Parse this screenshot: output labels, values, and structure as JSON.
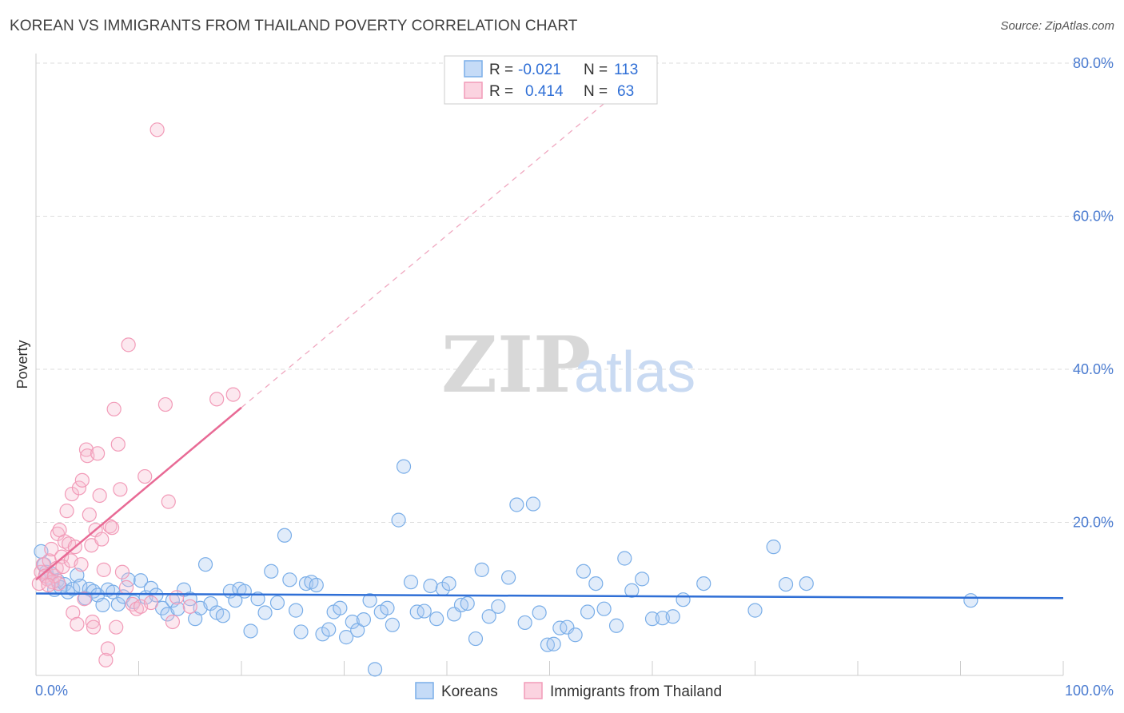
{
  "title": "KOREAN VS IMMIGRANTS FROM THAILAND POVERTY CORRELATION CHART",
  "source": "Source: ZipAtlas.com",
  "watermark": {
    "zip": "ZIP",
    "atlas": "atlas"
  },
  "colors": {
    "blue": "#7aaee8",
    "blue_line": "#2f6fd6",
    "pink": "#f29bb8",
    "pink_line": "#e86a95",
    "grid": "#dddddd"
  },
  "legend": {
    "r_label": "R = ",
    "n_label": "N = ",
    "rows": [
      {
        "r": "-0.021",
        "n": "113",
        "color": "blue"
      },
      {
        "r": "0.414",
        "n": "63",
        "color": "pink"
      }
    ]
  },
  "bottom_legend": [
    "Koreans",
    "Immigrants from Thailand"
  ],
  "chart_data": {
    "type": "scatter",
    "title": "KOREAN VS IMMIGRANTS FROM THAILAND POVERTY CORRELATION CHART",
    "xlabel": "",
    "ylabel": "Poverty",
    "xlim": [
      0,
      100
    ],
    "ylim": [
      0,
      80
    ],
    "x_tick_labels": [
      "0.0%",
      "100.0%"
    ],
    "y_tick_labels": [
      "20.0%",
      "40.0%",
      "60.0%",
      "80.0%"
    ],
    "y_ticks": [
      20,
      40,
      60,
      80
    ],
    "grid": true,
    "legend_position": "top-center",
    "series": [
      {
        "name": "Koreans",
        "color": "#7aaee8",
        "trend": {
          "x": [
            0,
            100
          ],
          "y": [
            10.7,
            10.1
          ]
        },
        "points": [
          [
            0.5,
            16.2
          ],
          [
            0.8,
            14.5
          ],
          [
            1.0,
            13.5
          ],
          [
            1.2,
            12.8
          ],
          [
            1.5,
            13.3
          ],
          [
            1.8,
            11.2
          ],
          [
            2.1,
            12.4
          ],
          [
            2.4,
            11.5
          ],
          [
            2.8,
            11.9
          ],
          [
            3.1,
            10.9
          ],
          [
            3.6,
            11.3
          ],
          [
            4.0,
            13.1
          ],
          [
            4.3,
            11.7
          ],
          [
            4.8,
            10.1
          ],
          [
            5.2,
            11.3
          ],
          [
            5.6,
            11.0
          ],
          [
            6.0,
            10.5
          ],
          [
            6.5,
            9.2
          ],
          [
            7.0,
            11.2
          ],
          [
            7.5,
            10.9
          ],
          [
            8.0,
            9.3
          ],
          [
            8.5,
            10.3
          ],
          [
            9.0,
            12.5
          ],
          [
            9.5,
            9.6
          ],
          [
            10.2,
            12.4
          ],
          [
            10.7,
            10.2
          ],
          [
            11.2,
            11.4
          ],
          [
            11.7,
            10.5
          ],
          [
            12.3,
            8.8
          ],
          [
            12.8,
            8.0
          ],
          [
            13.3,
            9.8
          ],
          [
            13.8,
            8.7
          ],
          [
            14.4,
            11.2
          ],
          [
            15.0,
            10.0
          ],
          [
            15.5,
            7.4
          ],
          [
            16.0,
            8.8
          ],
          [
            16.5,
            14.5
          ],
          [
            17.0,
            9.4
          ],
          [
            17.6,
            8.2
          ],
          [
            18.2,
            7.8
          ],
          [
            18.9,
            11.0
          ],
          [
            19.4,
            9.8
          ],
          [
            19.8,
            11.3
          ],
          [
            20.3,
            11.0
          ],
          [
            20.9,
            5.8
          ],
          [
            21.6,
            10.0
          ],
          [
            22.3,
            8.2
          ],
          [
            22.9,
            13.6
          ],
          [
            23.5,
            9.5
          ],
          [
            24.2,
            18.3
          ],
          [
            24.7,
            12.5
          ],
          [
            25.3,
            8.5
          ],
          [
            25.8,
            5.7
          ],
          [
            26.3,
            12.0
          ],
          [
            26.8,
            12.2
          ],
          [
            27.3,
            11.8
          ],
          [
            27.9,
            5.4
          ],
          [
            28.5,
            6.0
          ],
          [
            29.0,
            8.3
          ],
          [
            29.6,
            8.8
          ],
          [
            30.2,
            5.0
          ],
          [
            30.8,
            7.0
          ],
          [
            31.3,
            5.9
          ],
          [
            31.9,
            7.3
          ],
          [
            32.5,
            9.8
          ],
          [
            33.0,
            0.8
          ],
          [
            33.6,
            8.3
          ],
          [
            34.2,
            8.8
          ],
          [
            34.7,
            6.6
          ],
          [
            35.3,
            20.3
          ],
          [
            35.8,
            27.3
          ],
          [
            36.5,
            12.2
          ],
          [
            37.1,
            8.3
          ],
          [
            37.8,
            8.4
          ],
          [
            38.4,
            11.7
          ],
          [
            39.0,
            7.4
          ],
          [
            39.6,
            11.3
          ],
          [
            40.2,
            12.0
          ],
          [
            40.7,
            8.0
          ],
          [
            41.4,
            9.2
          ],
          [
            42.0,
            9.4
          ],
          [
            42.8,
            4.8
          ],
          [
            43.4,
            13.8
          ],
          [
            44.1,
            7.7
          ],
          [
            45.0,
            9.0
          ],
          [
            46.0,
            12.8
          ],
          [
            46.8,
            22.3
          ],
          [
            47.6,
            6.9
          ],
          [
            48.4,
            22.4
          ],
          [
            49.0,
            8.2
          ],
          [
            49.8,
            4.0
          ],
          [
            50.4,
            4.1
          ],
          [
            51.0,
            6.2
          ],
          [
            51.7,
            6.3
          ],
          [
            52.5,
            5.3
          ],
          [
            53.3,
            13.6
          ],
          [
            53.7,
            8.3
          ],
          [
            54.5,
            12.0
          ],
          [
            55.3,
            8.7
          ],
          [
            56.5,
            6.5
          ],
          [
            57.3,
            15.3
          ],
          [
            58.0,
            11.1
          ],
          [
            59.0,
            12.6
          ],
          [
            60.0,
            7.4
          ],
          [
            61.0,
            7.5
          ],
          [
            62.0,
            7.7
          ],
          [
            63.0,
            9.9
          ],
          [
            65.0,
            12.0
          ],
          [
            71.8,
            16.8
          ],
          [
            73.0,
            11.9
          ],
          [
            75.0,
            12.0
          ],
          [
            91.0,
            9.8
          ],
          [
            70.0,
            8.5
          ]
        ]
      },
      {
        "name": "Immigrants from Thailand",
        "color": "#f29bb8",
        "trend": {
          "x": [
            0,
            20
          ],
          "y": [
            12.5,
            35.0
          ]
        },
        "trend_extension": {
          "x": [
            20,
            56
          ],
          "y": [
            35.0,
            75.5
          ]
        },
        "points": [
          [
            0.3,
            12.0
          ],
          [
            0.5,
            13.5
          ],
          [
            0.7,
            14.5
          ],
          [
            0.9,
            13.0
          ],
          [
            1.1,
            12.6
          ],
          [
            1.3,
            15.0
          ],
          [
            1.5,
            16.5
          ],
          [
            1.6,
            12.2
          ],
          [
            1.8,
            13.0
          ],
          [
            2.0,
            14.0
          ],
          [
            2.1,
            18.5
          ],
          [
            2.3,
            19.0
          ],
          [
            2.5,
            15.5
          ],
          [
            2.6,
            14.2
          ],
          [
            2.8,
            17.5
          ],
          [
            3.0,
            21.5
          ],
          [
            3.2,
            17.2
          ],
          [
            3.4,
            15.0
          ],
          [
            3.5,
            23.7
          ],
          [
            3.6,
            8.2
          ],
          [
            3.8,
            16.8
          ],
          [
            4.0,
            6.7
          ],
          [
            4.2,
            24.5
          ],
          [
            4.4,
            14.5
          ],
          [
            4.5,
            25.5
          ],
          [
            4.7,
            10.0
          ],
          [
            4.9,
            29.5
          ],
          [
            5.0,
            28.7
          ],
          [
            5.2,
            21.0
          ],
          [
            5.4,
            17.0
          ],
          [
            5.5,
            7.0
          ],
          [
            5.6,
            6.3
          ],
          [
            5.8,
            19.0
          ],
          [
            6.0,
            29.0
          ],
          [
            6.2,
            23.5
          ],
          [
            6.4,
            17.8
          ],
          [
            6.6,
            13.8
          ],
          [
            6.8,
            2.0
          ],
          [
            7.0,
            3.5
          ],
          [
            7.2,
            19.5
          ],
          [
            7.4,
            19.3
          ],
          [
            7.6,
            34.8
          ],
          [
            7.8,
            6.3
          ],
          [
            8.0,
            30.2
          ],
          [
            8.2,
            24.3
          ],
          [
            8.4,
            13.5
          ],
          [
            8.8,
            11.5
          ],
          [
            9.0,
            43.2
          ],
          [
            9.4,
            9.3
          ],
          [
            9.8,
            8.7
          ],
          [
            10.2,
            9.0
          ],
          [
            10.6,
            26.0
          ],
          [
            11.2,
            9.5
          ],
          [
            11.8,
            71.3
          ],
          [
            12.6,
            35.4
          ],
          [
            12.9,
            22.7
          ],
          [
            13.3,
            7.0
          ],
          [
            13.7,
            10.2
          ],
          [
            15.0,
            9.0
          ],
          [
            17.6,
            36.1
          ],
          [
            19.2,
            36.7
          ],
          [
            2.2,
            12.0
          ],
          [
            1.2,
            11.8
          ]
        ]
      }
    ]
  }
}
